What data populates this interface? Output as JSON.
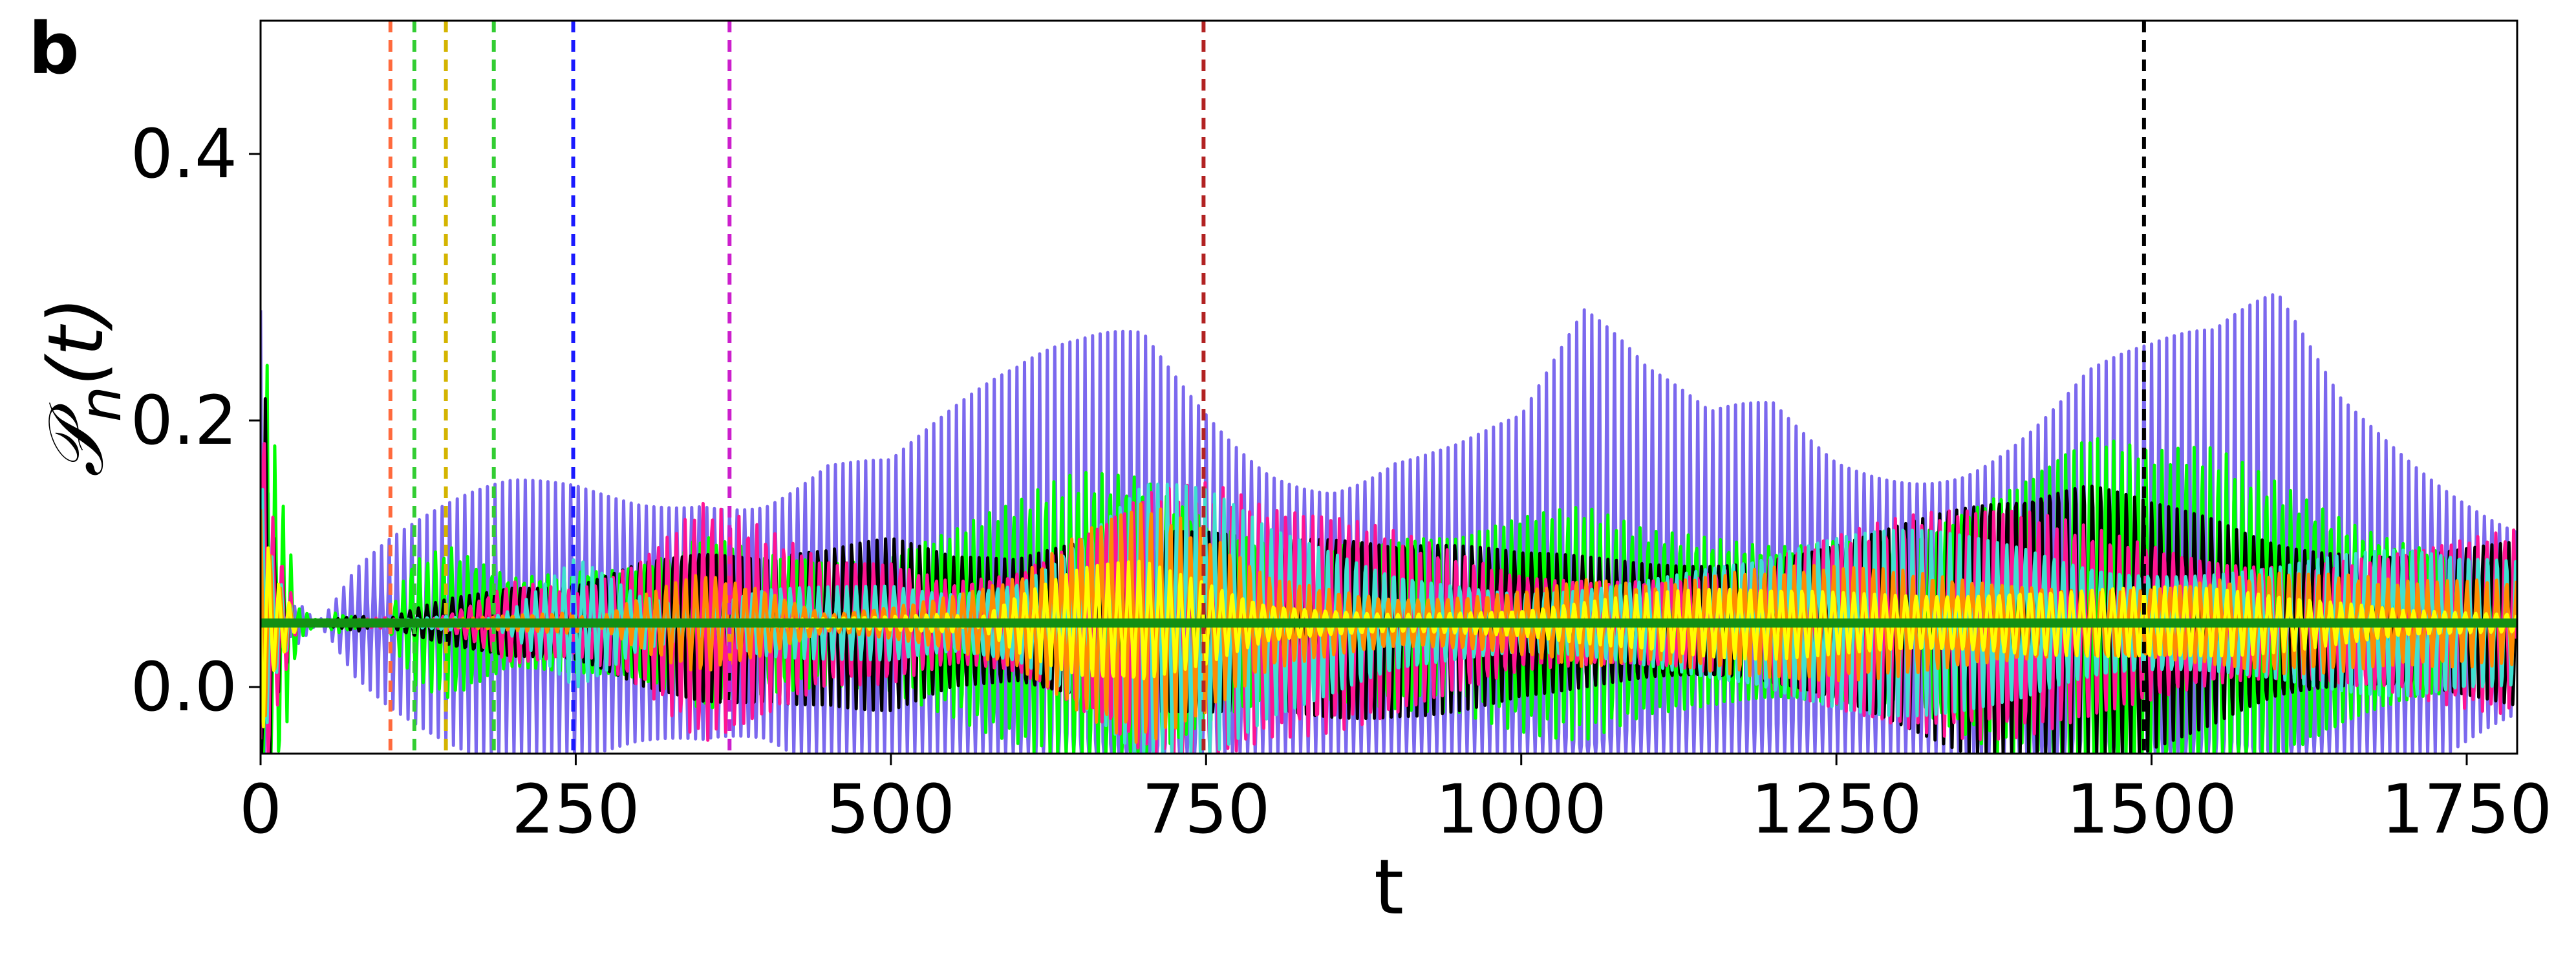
{
  "panel_label": "b",
  "chart_data": {
    "type": "line",
    "xlabel": "t",
    "ylabel": "𝒫n(t)",
    "ylabel_base": "𝒫",
    "ylabel_sub": "n",
    "ylabel_tail": "(t)",
    "xlim": [
      0,
      1790
    ],
    "ylim": [
      -0.05,
      0.5
    ],
    "xticks": [
      0,
      250,
      500,
      750,
      1000,
      1250,
      1500,
      1750
    ],
    "xtick_labels": [
      "0",
      "250",
      "500",
      "750",
      "1000",
      "1250",
      "1500",
      "1750"
    ],
    "yticks": [
      0.0,
      0.2,
      0.4
    ],
    "ytick_labels": [
      "0.0",
      "0.2",
      "0.4"
    ],
    "grid": false,
    "legend": "none",
    "baseline": {
      "value": 0.048,
      "color": "#138f13"
    },
    "vlines": [
      {
        "x": 103,
        "color": "#ff6a3d"
      },
      {
        "x": 122,
        "color": "#32cd32"
      },
      {
        "x": 147,
        "color": "#d4b400"
      },
      {
        "x": 185,
        "color": "#32cd32"
      },
      {
        "x": 248,
        "color": "#1a1aff"
      },
      {
        "x": 372,
        "color": "#cc1fcc"
      },
      {
        "x": 748,
        "color": "#b22222"
      },
      {
        "x": 1494,
        "color": "#000000"
      }
    ],
    "series": [
      {
        "color": "#7b68ee",
        "envelope": [
          [
            0,
            0.36
          ],
          [
            10,
            0.05
          ],
          [
            30,
            0.03
          ],
          [
            55,
            0.06
          ],
          [
            75,
            0.09
          ],
          [
            100,
            0.11
          ],
          [
            150,
            0.14
          ],
          [
            200,
            0.17
          ],
          [
            250,
            0.19
          ],
          [
            300,
            0.2
          ],
          [
            350,
            0.22
          ],
          [
            400,
            0.21
          ],
          [
            450,
            0.23
          ],
          [
            500,
            0.2
          ],
          [
            550,
            0.22
          ],
          [
            600,
            0.24
          ],
          [
            650,
            0.27
          ],
          [
            700,
            0.31
          ],
          [
            750,
            0.28
          ],
          [
            800,
            0.25
          ],
          [
            850,
            0.24
          ],
          [
            900,
            0.26
          ],
          [
            950,
            0.24
          ],
          [
            1000,
            0.23
          ],
          [
            1050,
            0.29
          ],
          [
            1100,
            0.24
          ],
          [
            1150,
            0.22
          ],
          [
            1200,
            0.26
          ],
          [
            1250,
            0.24
          ],
          [
            1300,
            0.25
          ],
          [
            1350,
            0.26
          ],
          [
            1400,
            0.28
          ],
          [
            1450,
            0.3
          ],
          [
            1500,
            0.28
          ],
          [
            1550,
            0.27
          ],
          [
            1600,
            0.3
          ],
          [
            1650,
            0.24
          ],
          [
            1700,
            0.22
          ],
          [
            1750,
            0.2
          ],
          [
            1790,
            0.18
          ]
        ]
      },
      {
        "color": "#00ff00",
        "envelope": [
          [
            0,
            0.33
          ],
          [
            10,
            0.2
          ],
          [
            30,
            0.06
          ],
          [
            60,
            0.04
          ],
          [
            100,
            0.05
          ],
          [
            120,
            0.1
          ],
          [
            150,
            0.12
          ],
          [
            200,
            0.1
          ],
          [
            250,
            0.12
          ],
          [
            300,
            0.13
          ],
          [
            350,
            0.16
          ],
          [
            400,
            0.12
          ],
          [
            450,
            0.1
          ],
          [
            500,
            0.1
          ],
          [
            550,
            0.12
          ],
          [
            600,
            0.15
          ],
          [
            650,
            0.2
          ],
          [
            700,
            0.23
          ],
          [
            750,
            0.2
          ],
          [
            800,
            0.16
          ],
          [
            850,
            0.14
          ],
          [
            900,
            0.13
          ],
          [
            950,
            0.12
          ],
          [
            1000,
            0.13
          ],
          [
            1050,
            0.14
          ],
          [
            1100,
            0.13
          ],
          [
            1150,
            0.14
          ],
          [
            1200,
            0.15
          ],
          [
            1250,
            0.17
          ],
          [
            1300,
            0.16
          ],
          [
            1350,
            0.17
          ],
          [
            1400,
            0.18
          ],
          [
            1450,
            0.2
          ],
          [
            1500,
            0.18
          ],
          [
            1550,
            0.19
          ],
          [
            1600,
            0.18
          ],
          [
            1650,
            0.17
          ],
          [
            1700,
            0.16
          ],
          [
            1750,
            0.15
          ],
          [
            1790,
            0.13
          ]
        ]
      },
      {
        "color": "#000000",
        "envelope": [
          [
            0,
            0.3
          ],
          [
            10,
            0.12
          ],
          [
            30,
            0.05
          ],
          [
            80,
            0.04
          ],
          [
            150,
            0.08
          ],
          [
            200,
            0.1
          ],
          [
            250,
            0.1
          ],
          [
            300,
            0.12
          ],
          [
            350,
            0.12
          ],
          [
            400,
            0.11
          ],
          [
            450,
            0.11
          ],
          [
            500,
            0.12
          ],
          [
            550,
            0.11
          ],
          [
            600,
            0.12
          ],
          [
            650,
            0.16
          ],
          [
            700,
            0.19
          ],
          [
            750,
            0.17
          ],
          [
            800,
            0.14
          ],
          [
            900,
            0.12
          ],
          [
            1000,
            0.11
          ],
          [
            1100,
            0.12
          ],
          [
            1200,
            0.14
          ],
          [
            1300,
            0.15
          ],
          [
            1400,
            0.16
          ],
          [
            1450,
            0.17
          ],
          [
            1500,
            0.16
          ],
          [
            1550,
            0.16
          ],
          [
            1600,
            0.15
          ],
          [
            1650,
            0.15
          ],
          [
            1700,
            0.14
          ],
          [
            1790,
            0.13
          ]
        ]
      },
      {
        "color": "#ff1493",
        "envelope": [
          [
            0,
            0.28
          ],
          [
            10,
            0.15
          ],
          [
            30,
            0.05
          ],
          [
            100,
            0.04
          ],
          [
            150,
            0.06
          ],
          [
            200,
            0.1
          ],
          [
            250,
            0.08
          ],
          [
            300,
            0.1
          ],
          [
            350,
            0.14
          ],
          [
            400,
            0.12
          ],
          [
            450,
            0.1
          ],
          [
            500,
            0.11
          ],
          [
            550,
            0.1
          ],
          [
            600,
            0.12
          ],
          [
            650,
            0.17
          ],
          [
            700,
            0.2
          ],
          [
            750,
            0.18
          ],
          [
            800,
            0.14
          ],
          [
            900,
            0.12
          ],
          [
            1000,
            0.1
          ],
          [
            1100,
            0.11
          ],
          [
            1200,
            0.12
          ],
          [
            1300,
            0.13
          ],
          [
            1400,
            0.14
          ],
          [
            1500,
            0.14
          ],
          [
            1600,
            0.13
          ],
          [
            1700,
            0.12
          ],
          [
            1790,
            0.12
          ]
        ]
      },
      {
        "color": "#40e0d0",
        "envelope": [
          [
            0,
            0.25
          ],
          [
            10,
            0.13
          ],
          [
            30,
            0.05
          ],
          [
            150,
            0.04
          ],
          [
            200,
            0.06
          ],
          [
            250,
            0.1
          ],
          [
            300,
            0.07
          ],
          [
            350,
            0.06
          ],
          [
            400,
            0.08
          ],
          [
            450,
            0.09
          ],
          [
            500,
            0.1
          ],
          [
            550,
            0.09
          ],
          [
            600,
            0.1
          ],
          [
            650,
            0.14
          ],
          [
            700,
            0.17
          ],
          [
            750,
            0.15
          ],
          [
            800,
            0.12
          ],
          [
            900,
            0.1
          ],
          [
            1000,
            0.09
          ],
          [
            1100,
            0.1
          ],
          [
            1200,
            0.11
          ],
          [
            1300,
            0.12
          ],
          [
            1400,
            0.13
          ],
          [
            1500,
            0.12
          ],
          [
            1600,
            0.11
          ],
          [
            1700,
            0.11
          ],
          [
            1790,
            0.1
          ]
        ]
      },
      {
        "color": "#ff8c00",
        "envelope": [
          [
            0,
            0.22
          ],
          [
            10,
            0.12
          ],
          [
            30,
            0.05
          ],
          [
            250,
            0.04
          ],
          [
            300,
            0.07
          ],
          [
            350,
            0.1
          ],
          [
            400,
            0.09
          ],
          [
            450,
            0.06
          ],
          [
            500,
            0.07
          ],
          [
            550,
            0.08
          ],
          [
            600,
            0.09
          ],
          [
            650,
            0.12
          ],
          [
            700,
            0.14
          ],
          [
            750,
            0.12
          ],
          [
            800,
            0.09
          ],
          [
            900,
            0.08
          ],
          [
            1000,
            0.09
          ],
          [
            1050,
            0.095
          ],
          [
            1100,
            0.08
          ],
          [
            1200,
            0.09
          ],
          [
            1300,
            0.1
          ],
          [
            1400,
            0.1
          ],
          [
            1500,
            0.09
          ],
          [
            1600,
            0.09
          ],
          [
            1700,
            0.08
          ],
          [
            1790,
            0.09
          ]
        ]
      },
      {
        "color": "#ffff00",
        "envelope": [
          [
            0,
            0.18
          ],
          [
            10,
            0.1
          ],
          [
            30,
            0.05
          ],
          [
            550,
            0.04
          ],
          [
            600,
            0.07
          ],
          [
            650,
            0.09
          ],
          [
            700,
            0.1
          ],
          [
            750,
            0.09
          ],
          [
            800,
            0.07
          ],
          [
            900,
            0.06
          ],
          [
            1000,
            0.06
          ],
          [
            1100,
            0.07
          ],
          [
            1200,
            0.08
          ],
          [
            1300,
            0.085
          ],
          [
            1400,
            0.09
          ],
          [
            1500,
            0.08
          ],
          [
            1600,
            0.07
          ],
          [
            1700,
            0.06
          ],
          [
            1790,
            0.06
          ]
        ]
      }
    ]
  }
}
